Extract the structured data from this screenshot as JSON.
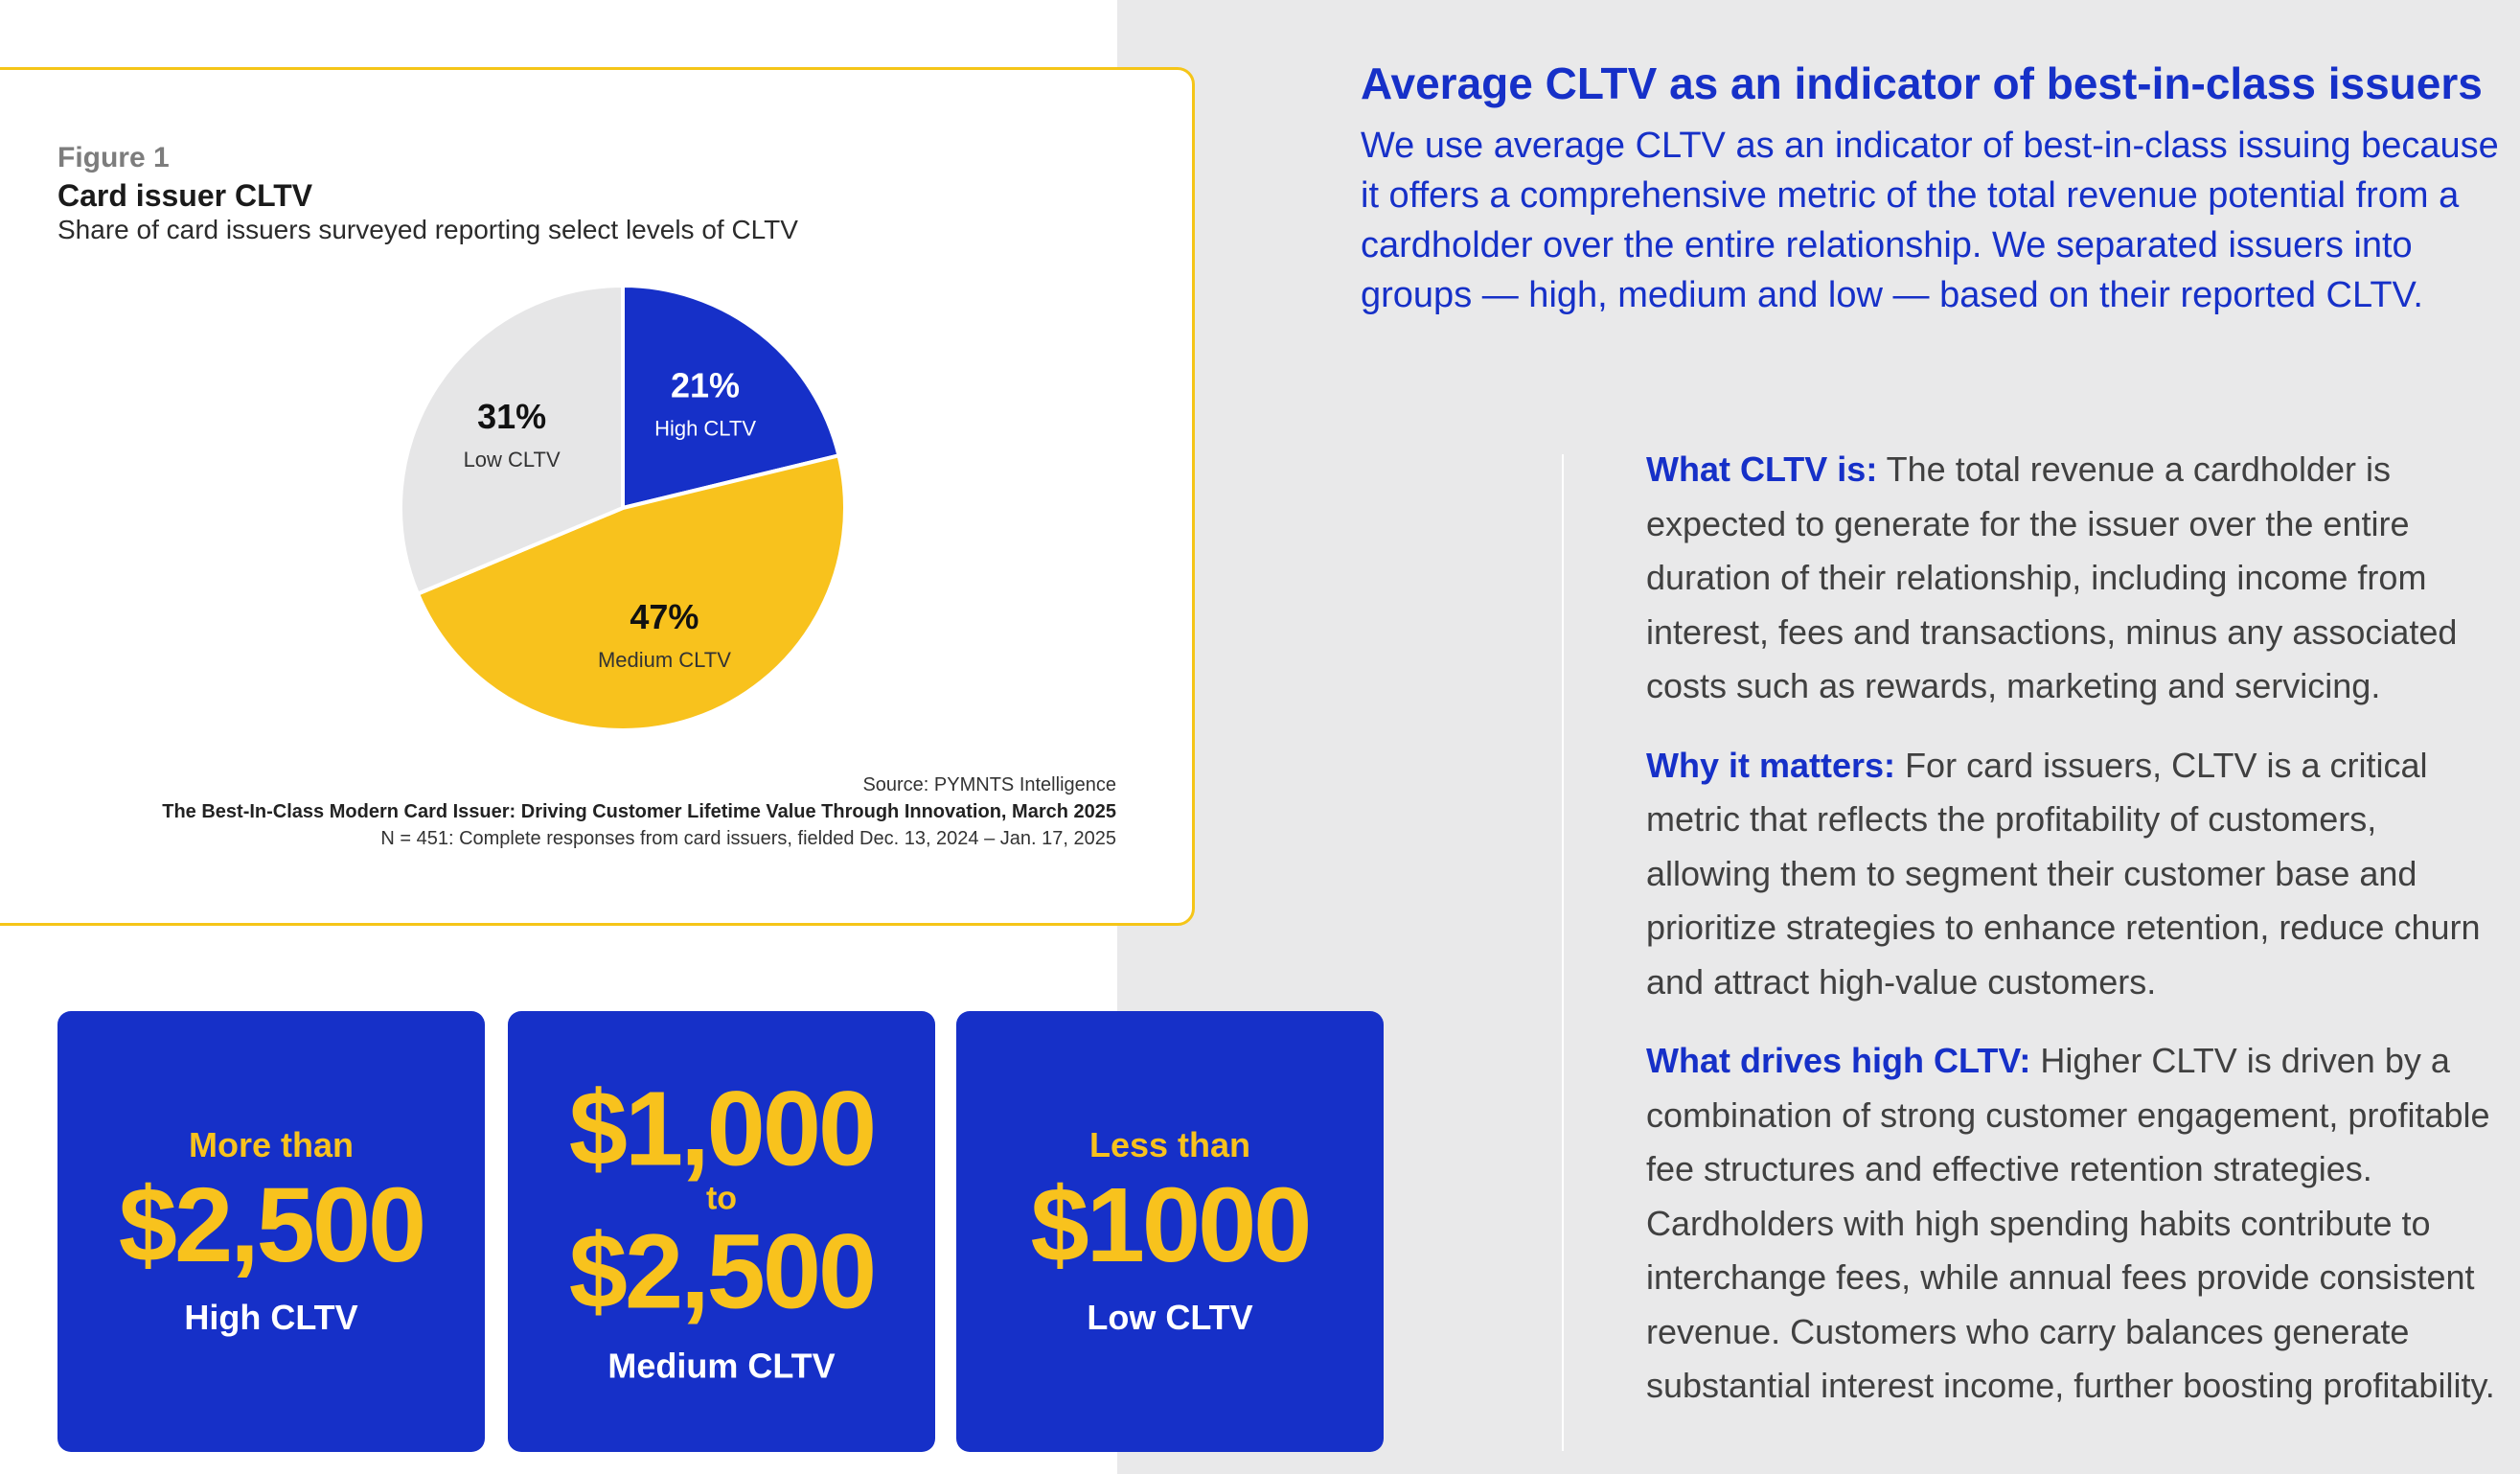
{
  "figure": {
    "label": "Figure 1",
    "title": "Card issuer CLTV",
    "subtitle": "Share of card issuers surveyed reporting select levels of CLTV",
    "source": "Source: PYMNTS Intelligence",
    "report": "The Best-In-Class Modern Card Issuer: Driving Customer Lifetime Value Through Innovation, March 2025",
    "sample": "N = 451: Complete responses from card issuers, fielded Dec. 13, 2024 – Jan. 17, 2025"
  },
  "chart_data": {
    "type": "pie",
    "title": "Card issuer CLTV",
    "subtitle": "Share of card issuers surveyed reporting select levels of CLTV",
    "categories": [
      "High CLTV",
      "Medium CLTV",
      "Low CLTV"
    ],
    "values": [
      21,
      47,
      31
    ],
    "value_labels": [
      "21%",
      "47%",
      "31%"
    ],
    "colors": [
      "#1630c8",
      "#f8c21d",
      "#e6e6e7"
    ],
    "label_colors": [
      "#ffffff",
      "#111111",
      "#111111"
    ]
  },
  "stats": [
    {
      "prefix": "More than",
      "value": "$2,500",
      "label": "High CLTV"
    },
    {
      "value_top": "$1,000",
      "connector": "to",
      "value_bottom": "$2,500",
      "label": "Medium CLTV"
    },
    {
      "prefix": "Less than",
      "value": "$1000",
      "label": "Low CLTV"
    }
  ],
  "right": {
    "heading": "Average CLTV as an indicator of best-in-class issuers",
    "intro": "We use average CLTV as an indicator of best-in-class issuing because it offers a comprehensive metric of the total revenue potential from a cardholder over the entire relationship. We separated issuers into groups — high, medium and low — based on their reported CLTV.",
    "definitions": [
      {
        "term": "What CLTV is:",
        "text": "The total revenue a cardholder is expected to generate for the issuer over the entire duration of their relationship, including income from interest, fees and transactions, minus any associated costs such as rewards, marketing and servicing."
      },
      {
        "term": "Why it matters:",
        "text": "For card issuers, CLTV is a critical metric that reflects the profitability of customers, allowing them to segment their customer base and prioritize strategies to enhance retention, reduce churn and attract high-value customers."
      },
      {
        "term": "What drives high CLTV:",
        "text": "Higher CLTV is driven by a combination of strong customer engagement, profitable fee structures and effective retention strategies. Cardholders with high spending habits contribute to interchange fees, while annual fees provide consistent revenue. Customers who carry balances generate substantial interest income, further boosting profitability."
      }
    ]
  }
}
